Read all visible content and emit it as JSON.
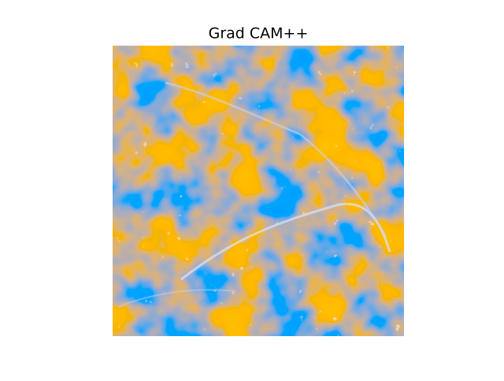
{
  "title": "Grad CAM++"
}
